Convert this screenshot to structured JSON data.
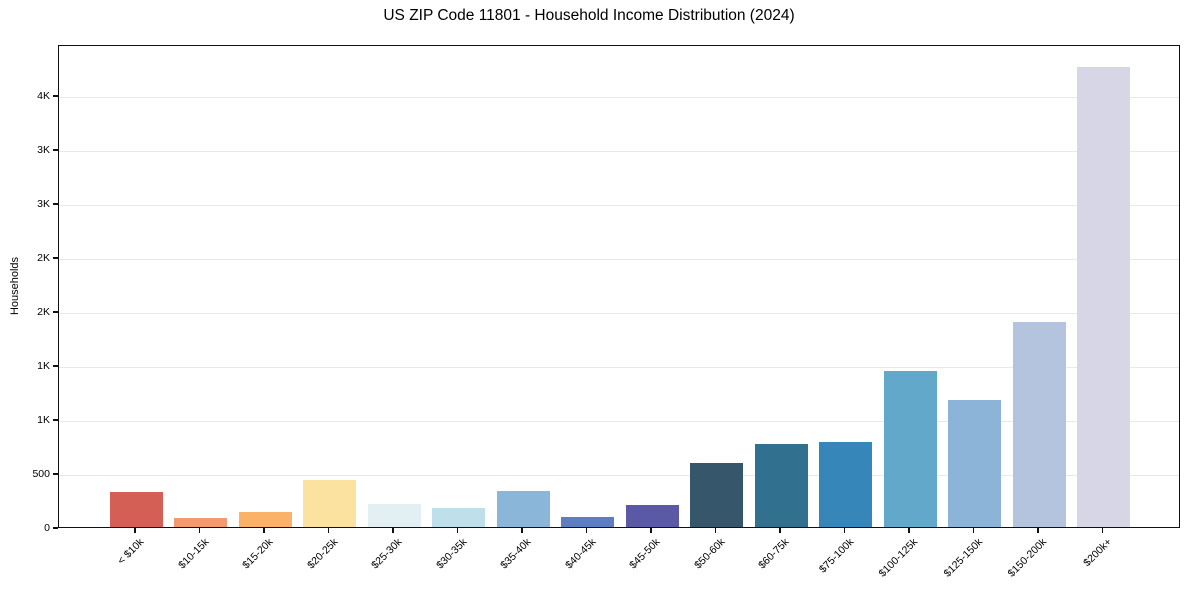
{
  "chart_data": {
    "type": "bar",
    "title": "US ZIP Code 11801 - Household Income Distribution (2024)",
    "xlabel": "",
    "ylabel": "Households",
    "categories": [
      "< $10k",
      "$10-15k",
      "$15-20k",
      "$20-25k",
      "$25-30k",
      "$30-35k",
      "$35-40k",
      "$40-45k",
      "$45-50k",
      "$50-60k",
      "$60-75k",
      "$75-100k",
      "$100-125k",
      "$125-150k",
      "$150-200k",
      "$200k+"
    ],
    "values": [
      320,
      85,
      140,
      435,
      210,
      175,
      330,
      90,
      200,
      590,
      770,
      790,
      1445,
      1175,
      1900,
      4260
    ],
    "bar_colors": [
      "#d45f55",
      "#f39a6e",
      "#fab269",
      "#fce2a0",
      "#e2f0f3",
      "#bfe0eb",
      "#8ab6d9",
      "#5b7fc0",
      "#5a59a6",
      "#36566c",
      "#31718f",
      "#3786ba",
      "#61a8ca",
      "#8cb3d8",
      "#b5c4de",
      "#d6d6e6"
    ],
    "y_ticks": {
      "values": [
        0,
        500,
        1000,
        1500,
        2000,
        2500,
        3000,
        3500,
        4000
      ],
      "labels": [
        "0",
        "500",
        "1K",
        "1K",
        "2K",
        "2K",
        "3K",
        "3K",
        "4K"
      ]
    },
    "ylim": [
      0,
      4470
    ],
    "grid": "horizontal",
    "legend": "none",
    "colors": {
      "background": "#ffffff",
      "spine": "#111111",
      "gridline": "#e9e9e9",
      "text": "#000000"
    }
  }
}
